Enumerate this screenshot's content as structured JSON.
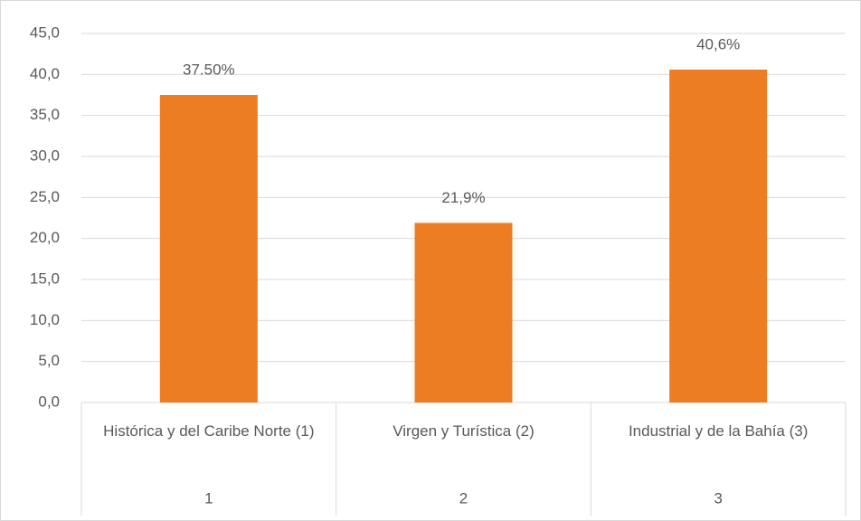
{
  "chart_data": {
    "type": "bar",
    "categories": [
      "Histórica y del Caribe Norte (1)",
      "Virgen y Turística (2)",
      "Industrial y de la Bahía (3)"
    ],
    "category_groups": [
      "1",
      "2",
      "3"
    ],
    "values": [
      37.5,
      21.9,
      40.6
    ],
    "value_labels": [
      "37.50%",
      "21,9%",
      "40,6%"
    ],
    "color": "#ed7d22",
    "ylim": [
      0,
      45
    ],
    "yticks": [
      {
        "value": 0,
        "label": "0,0"
      },
      {
        "value": 5,
        "label": "5,0"
      },
      {
        "value": 10,
        "label": "10,0"
      },
      {
        "value": 15,
        "label": "15,0"
      },
      {
        "value": 20,
        "label": "20,0"
      },
      {
        "value": 25,
        "label": "25,0"
      },
      {
        "value": 30,
        "label": "30,0"
      },
      {
        "value": 35,
        "label": "35,0"
      },
      {
        "value": 40,
        "label": "40,0"
      },
      {
        "value": 45,
        "label": "45,0"
      }
    ],
    "grid": true
  }
}
